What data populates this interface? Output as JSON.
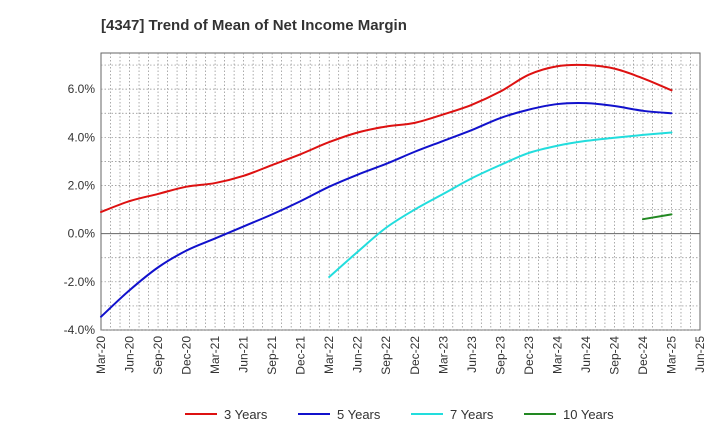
{
  "chart_data": {
    "type": "line",
    "title": "[4347]  Trend of Mean of Net Income Margin",
    "xlabel": "",
    "ylabel": "",
    "x_ticks": [
      "Mar-20",
      "Jun-20",
      "Sep-20",
      "Dec-20",
      "Mar-21",
      "Jun-21",
      "Sep-21",
      "Dec-21",
      "Mar-22",
      "Jun-22",
      "Sep-22",
      "Dec-22",
      "Mar-23",
      "Jun-23",
      "Sep-23",
      "Dec-23",
      "Mar-24",
      "Jun-24",
      "Sep-24",
      "Dec-24",
      "Mar-25",
      "Jun-25"
    ],
    "y_ticks": [
      {
        "value": -4.0,
        "label": "-4.0%"
      },
      {
        "value": -2.0,
        "label": "-2.0%"
      },
      {
        "value": 0.0,
        "label": "0.0%"
      },
      {
        "value": 2.0,
        "label": "2.0%"
      },
      {
        "value": 4.0,
        "label": "4.0%"
      },
      {
        "value": 6.0,
        "label": "6.0%"
      }
    ],
    "ylim": [
      -4.0,
      7.5
    ],
    "grid": true,
    "legend_position": "bottom",
    "series": [
      {
        "name": "3 Years",
        "color": "#dd1111",
        "x": [
          "Mar-20",
          "Jun-20",
          "Sep-20",
          "Dec-20",
          "Mar-21",
          "Jun-21",
          "Sep-21",
          "Dec-21",
          "Mar-22",
          "Jun-22",
          "Sep-22",
          "Dec-22",
          "Mar-23",
          "Jun-23",
          "Sep-23",
          "Dec-23",
          "Mar-24",
          "Jun-24",
          "Sep-24",
          "Dec-24",
          "Mar-25"
        ],
        "values": [
          0.9,
          1.35,
          1.65,
          1.95,
          2.1,
          2.4,
          2.85,
          3.3,
          3.8,
          4.2,
          4.45,
          4.6,
          4.95,
          5.35,
          5.9,
          6.6,
          6.95,
          7.0,
          6.85,
          6.45,
          5.95
        ]
      },
      {
        "name": "5 Years",
        "color": "#1111cc",
        "x": [
          "Mar-20",
          "Jun-20",
          "Sep-20",
          "Dec-20",
          "Mar-21",
          "Jun-21",
          "Sep-21",
          "Dec-21",
          "Mar-22",
          "Jun-22",
          "Sep-22",
          "Dec-22",
          "Mar-23",
          "Jun-23",
          "Sep-23",
          "Dec-23",
          "Mar-24",
          "Jun-24",
          "Sep-24",
          "Dec-24",
          "Mar-25"
        ],
        "values": [
          -3.45,
          -2.35,
          -1.4,
          -0.7,
          -0.2,
          0.3,
          0.8,
          1.35,
          1.95,
          2.45,
          2.9,
          3.4,
          3.85,
          4.3,
          4.8,
          5.15,
          5.38,
          5.42,
          5.3,
          5.1,
          5.0
        ]
      },
      {
        "name": "7 Years",
        "color": "#22dddd",
        "x": [
          "Mar-22",
          "Jun-22",
          "Sep-22",
          "Dec-22",
          "Mar-23",
          "Jun-23",
          "Sep-23",
          "Dec-23",
          "Mar-24",
          "Jun-24",
          "Sep-24",
          "Dec-24",
          "Mar-25"
        ],
        "values": [
          -1.8,
          -0.75,
          0.25,
          1.0,
          1.65,
          2.3,
          2.85,
          3.35,
          3.65,
          3.85,
          3.98,
          4.1,
          4.2
        ]
      },
      {
        "name": "10 Years",
        "color": "#228822",
        "x": [
          "Dec-24",
          "Mar-25"
        ],
        "values": [
          0.6,
          0.8
        ]
      }
    ]
  }
}
